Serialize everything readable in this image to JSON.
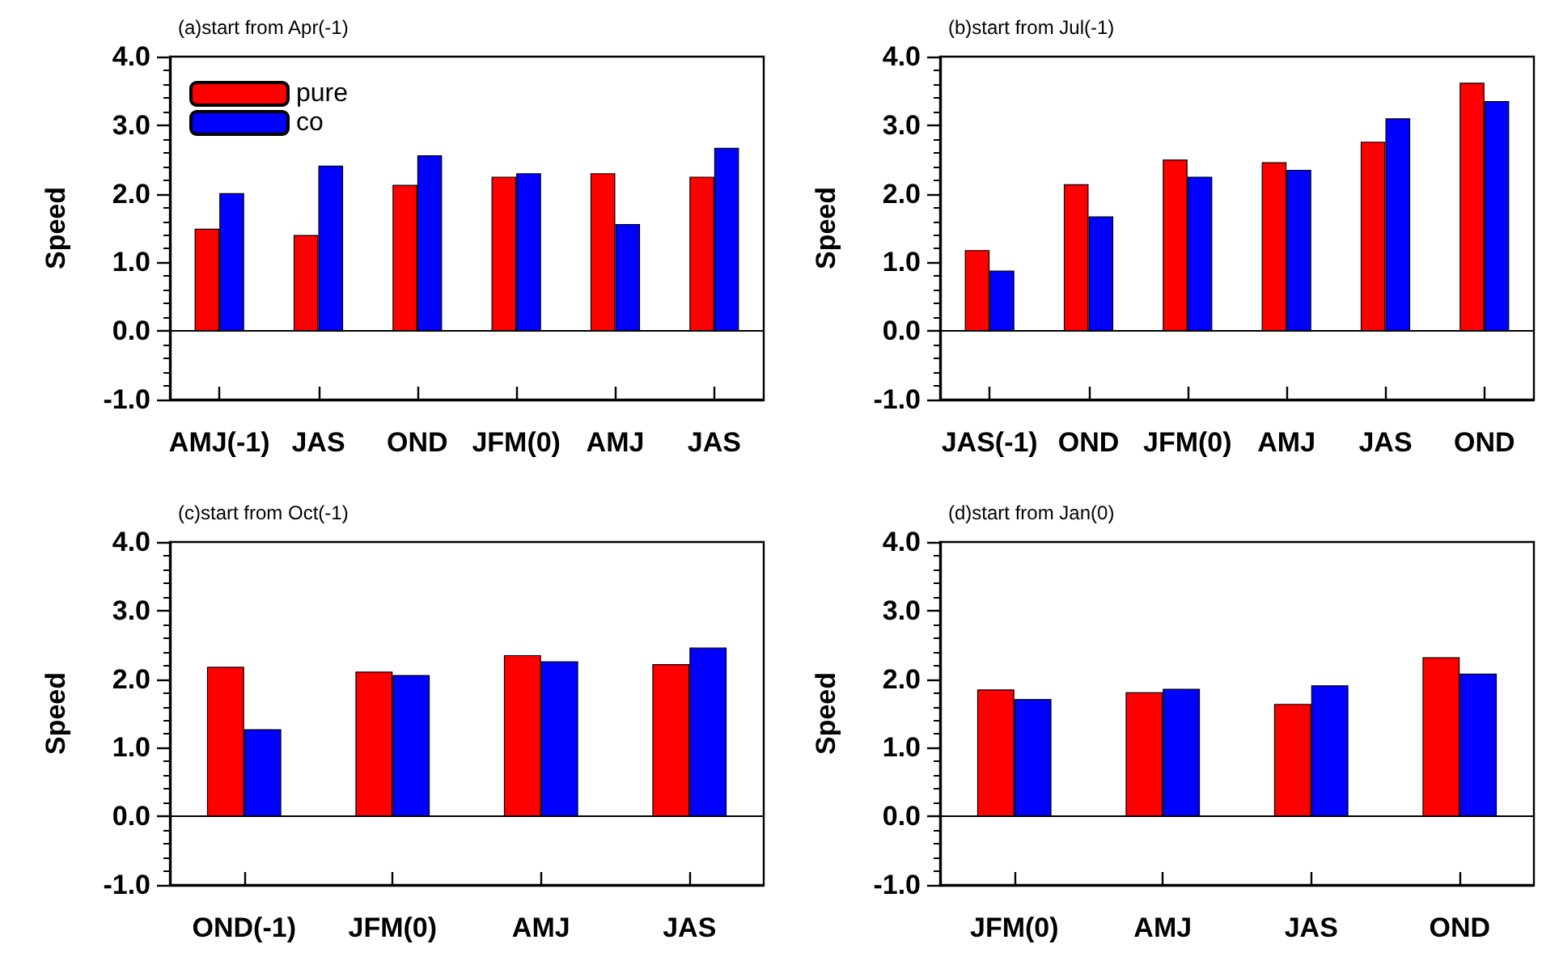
{
  "chart_data": [
    {
      "type": "bar",
      "title": "(a)start from Apr(-1)",
      "ylabel": "Speed",
      "categories": [
        "AMJ(-1)",
        "JAS",
        "OND",
        "JFM(0)",
        "AMJ",
        "JAS"
      ],
      "series": [
        {
          "name": "pure",
          "color": "#ff0000",
          "values": [
            1.49,
            1.4,
            2.13,
            2.25,
            2.3,
            2.25
          ]
        },
        {
          "name": "co",
          "color": "#0000ff",
          "values": [
            2.01,
            2.41,
            2.56,
            2.3,
            1.56,
            2.67
          ]
        }
      ],
      "ylim": [
        -1,
        4
      ],
      "yticks": [
        {
          "value": -1,
          "label": "-1.0"
        },
        {
          "value": 0,
          "label": "0.0"
        },
        {
          "value": 1,
          "label": "1.0"
        },
        {
          "value": 2,
          "label": "2.0"
        },
        {
          "value": 3,
          "label": "3.0"
        },
        {
          "value": 4,
          "label": "4.0"
        }
      ],
      "ref_lines": [
        {
          "axis": "y",
          "value": 0,
          "color": "#000000"
        }
      ],
      "legend": "top left",
      "grid": false
    },
    {
      "type": "bar",
      "title": "(b)start from Jul(-1)",
      "ylabel": "Speed",
      "categories": [
        "JAS(-1)",
        "OND",
        "JFM(0)",
        "AMJ",
        "JAS",
        "OND"
      ],
      "series": [
        {
          "color": "#ff0000",
          "values": [
            1.18,
            2.14,
            2.5,
            2.46,
            2.76,
            3.62
          ]
        },
        {
          "color": "#0000ff",
          "values": [
            0.88,
            1.67,
            2.25,
            2.35,
            3.1,
            3.35
          ]
        }
      ],
      "ylim": [
        -1,
        4
      ],
      "yticks": [
        {
          "value": -1,
          "label": "-1.0"
        },
        {
          "value": 0,
          "label": "0.0"
        },
        {
          "value": 1,
          "label": "1.0"
        },
        {
          "value": 2,
          "label": "2.0"
        },
        {
          "value": 3,
          "label": "3.0"
        },
        {
          "value": 4,
          "label": "4.0"
        }
      ],
      "ref_lines": [
        {
          "axis": "y",
          "value": 0,
          "color": "#000000"
        }
      ],
      "legend": false,
      "grid": false
    },
    {
      "type": "bar",
      "title": "(c)start from Oct(-1)",
      "ylabel": "Speed",
      "categories": [
        "OND(-1)",
        "JFM(0)",
        "AMJ",
        "JAS"
      ],
      "series": [
        {
          "color": "#ff0000",
          "values": [
            2.18,
            2.11,
            2.35,
            2.22
          ]
        },
        {
          "color": "#0000ff",
          "values": [
            1.27,
            2.06,
            2.26,
            2.46
          ]
        }
      ],
      "ylim": [
        -1,
        4
      ],
      "yticks": [
        {
          "value": -1,
          "label": "-1.0"
        },
        {
          "value": 0,
          "label": "0.0"
        },
        {
          "value": 1,
          "label": "1.0"
        },
        {
          "value": 2,
          "label": "2.0"
        },
        {
          "value": 3,
          "label": "3.0"
        },
        {
          "value": 4,
          "label": "4.0"
        }
      ],
      "ref_lines": [
        {
          "axis": "y",
          "value": 0,
          "color": "#000000"
        }
      ],
      "legend": false,
      "grid": false
    },
    {
      "type": "bar",
      "title": "(d)start from Jan(0)",
      "ylabel": "Speed",
      "categories": [
        "JFM(0)",
        "AMJ",
        "JAS",
        "OND"
      ],
      "series": [
        {
          "color": "#ff0000",
          "values": [
            1.85,
            1.81,
            1.64,
            2.32
          ]
        },
        {
          "color": "#0000ff",
          "values": [
            1.71,
            1.86,
            1.91,
            2.08
          ]
        }
      ],
      "ylim": [
        -1,
        4
      ],
      "yticks": [
        {
          "value": -1,
          "label": "-1.0"
        },
        {
          "value": 0,
          "label": "0.0"
        },
        {
          "value": 1,
          "label": "1.0"
        },
        {
          "value": 2,
          "label": "2.0"
        },
        {
          "value": 3,
          "label": "3.0"
        },
        {
          "value": 4,
          "label": "4.0"
        }
      ],
      "ref_lines": [
        {
          "axis": "y",
          "value": 0,
          "color": "#000000"
        }
      ],
      "legend": false,
      "grid": false
    }
  ]
}
